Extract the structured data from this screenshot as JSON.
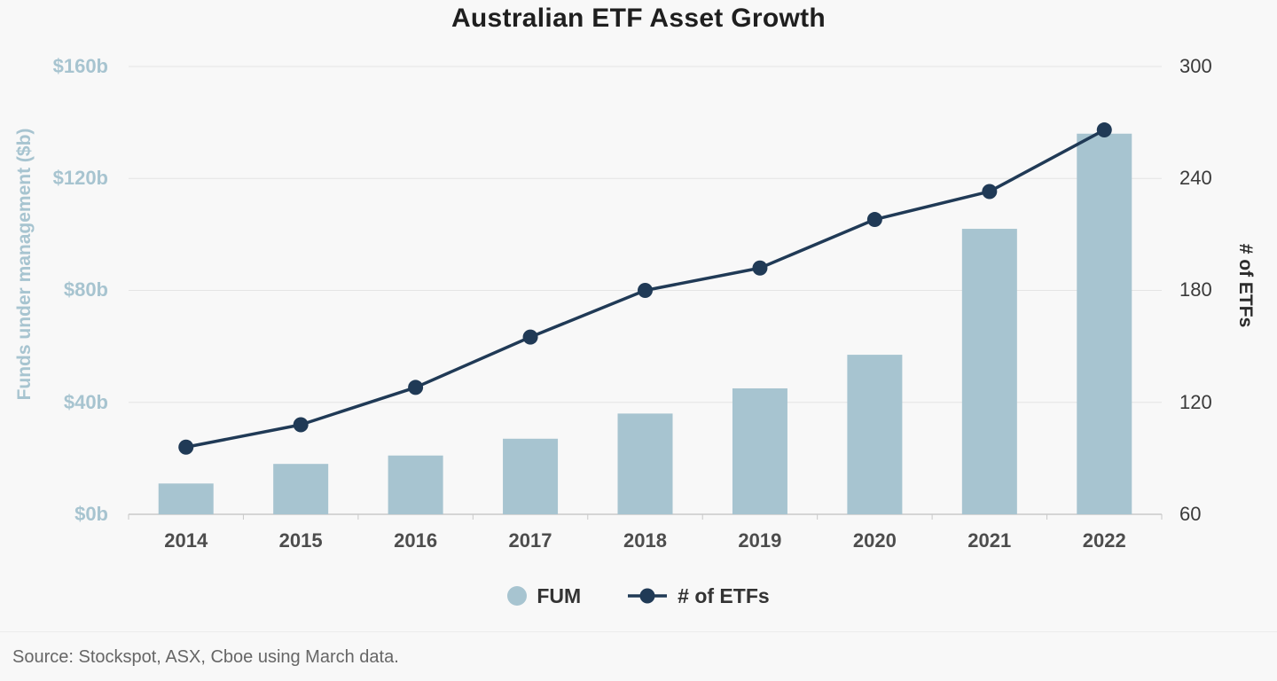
{
  "source": "Source: Stockspot, ASX, Cboe using March data.",
  "chart_data": {
    "type": "bar",
    "combo": "bar+line dual axis",
    "title": "Australian ETF Asset Growth",
    "categories": [
      "2014",
      "2015",
      "2016",
      "2017",
      "2018",
      "2019",
      "2020",
      "2021",
      "2022"
    ],
    "series": [
      {
        "name": "FUM",
        "type": "bar",
        "axis": "left",
        "values": [
          11,
          18,
          21,
          27,
          36,
          45,
          57,
          102,
          136
        ]
      },
      {
        "name": "# of ETFs",
        "type": "line",
        "axis": "right",
        "values": [
          96,
          108,
          128,
          155,
          180,
          192,
          218,
          233,
          266
        ]
      }
    ],
    "left_axis": {
      "label": "Funds under management ($b)",
      "min": 0,
      "max": 160,
      "ticks": [
        "$0b",
        "$40b",
        "$80b",
        "$120b",
        "$160b"
      ]
    },
    "right_axis": {
      "label": "# of ETFs",
      "min": 60,
      "max": 300,
      "ticks": [
        "60",
        "120",
        "180",
        "240",
        "300"
      ]
    },
    "legend": [
      "FUM",
      "# of ETFs"
    ],
    "grid": "horizontal only",
    "legend_position": "bottom center",
    "colors": {
      "bar": "#a7c4d0",
      "line": "#203a56",
      "grid": "#e4e4e4",
      "axis_line": "#c9c9c9",
      "left_axis_text": "#a7c4d0",
      "background": "#f8f8f8"
    }
  }
}
